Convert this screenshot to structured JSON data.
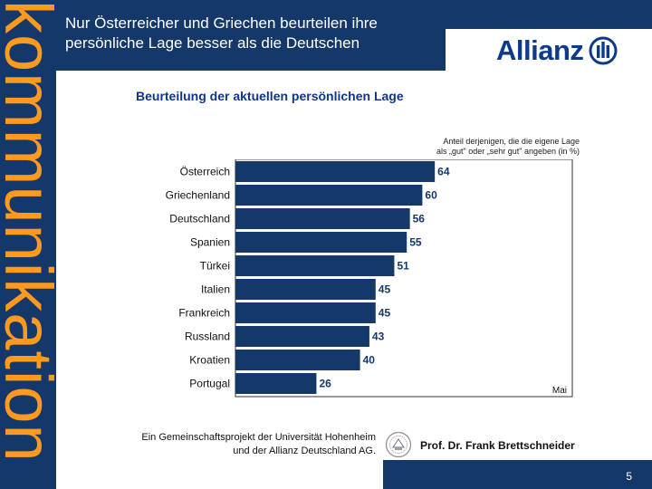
{
  "side_banner": {
    "text": "kommunikation",
    "color": "#ff9a1f"
  },
  "header": {
    "title_line1": "Nur Österreicher und Griechen beurteilen ihre",
    "title_line2": "persönliche Lage besser als die Deutschen",
    "band_color": "#14386a"
  },
  "logo": {
    "name": "Allianz",
    "icon": "allianz-eagle-icon",
    "color": "#0e3a8a"
  },
  "chart_data": {
    "type": "bar",
    "orientation": "horizontal",
    "title": "Beurteilung der aktuellen persönlichen Lage",
    "note_line1": "Anteil derjenigen, die die eigene Lage",
    "note_line2": "als „gut\" oder „sehr gut\" angeben (in %)",
    "categories": [
      "Österreich",
      "Griechenland",
      "Deutschland",
      "Spanien",
      "Türkei",
      "Italien",
      "Frankreich",
      "Russland",
      "Kroatien",
      "Portugal"
    ],
    "values": [
      64,
      60,
      56,
      55,
      51,
      45,
      45,
      43,
      40,
      26
    ],
    "xlim": [
      0,
      100
    ],
    "corner_label": "Mai",
    "bar_color": "#14386a"
  },
  "footer": {
    "line1": "Ein Gemeinschaftsprojekt der Universität Hohenheim",
    "line2": "und der Allianz Deutschland AG.",
    "seal_icon": "university-seal-icon",
    "author": "Prof. Dr. Frank Brettschneider",
    "page_number": "5"
  }
}
